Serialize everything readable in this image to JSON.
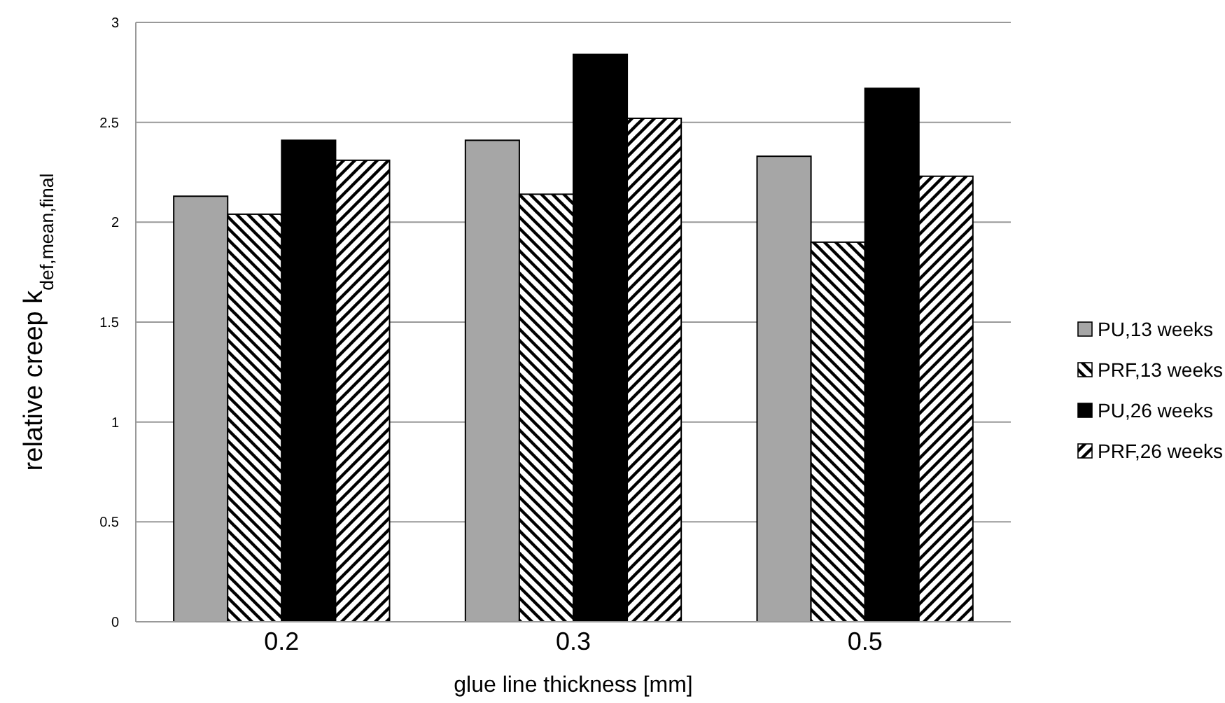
{
  "chart_data": {
    "type": "bar",
    "xlabel": "glue line thickness [mm]",
    "ylabel": "relative creep k$_{def,mean,final}$",
    "categories": [
      "0.2",
      "0.3",
      "0.5"
    ],
    "series": [
      {
        "name": "PU,13 weeks",
        "color": "#a6a6a6",
        "values": [
          2.13,
          2.41,
          2.33
        ]
      },
      {
        "name": "PRF,13 weeks",
        "color": "#000000",
        "values": [
          2.04,
          2.14,
          1.9
        ]
      },
      {
        "name": "PU,26 weeks",
        "color": "#000000",
        "values": [
          2.41,
          2.84,
          2.67
        ]
      },
      {
        "name": "PRF,26 weeks",
        "color": "#000000",
        "values": [
          2.31,
          2.52,
          2.23
        ]
      }
    ],
    "ylim": [
      0,
      3
    ],
    "yticks": [
      0,
      0.5,
      1,
      1.5,
      2,
      2.5,
      3
    ],
    "grid": "y",
    "legend": "right"
  }
}
